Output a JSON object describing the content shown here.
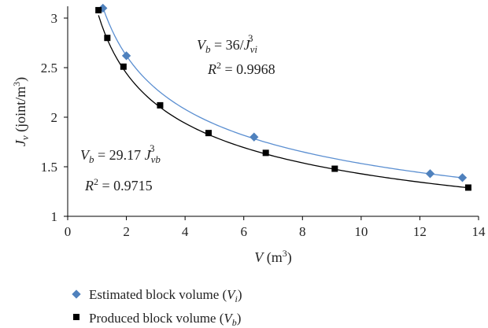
{
  "chart_data": {
    "type": "scatter",
    "xlabel": "V (m³)",
    "ylabel": "Jv (joint/m³)",
    "xlim": [
      0,
      14
    ],
    "ylim": [
      1,
      3.1
    ],
    "x_ticks": [
      "0",
      "2",
      "4",
      "6",
      "8",
      "10",
      "12",
      "14"
    ],
    "y_ticks": [
      "1",
      "1.5",
      "2",
      "2.5",
      "3"
    ],
    "grid": false,
    "legend_position": "bottom-left",
    "series": [
      {
        "name": "Estimated block volume (Vi)",
        "marker": "diamond",
        "color": "#4f81bd",
        "points": [
          {
            "x": 1.2,
            "y": 3.1
          },
          {
            "x": 2.0,
            "y": 2.62
          },
          {
            "x": 6.35,
            "y": 1.8
          },
          {
            "x": 12.35,
            "y": 1.43
          },
          {
            "x": 13.45,
            "y": 1.39
          }
        ],
        "trend": {
          "label_lhs": "Vb = 36/Jvi³",
          "r2": "R² = 0.9968",
          "formula": "y = (36/x)^(1/3)"
        }
      },
      {
        "name": "Produced block volume (Vb)",
        "marker": "square",
        "color": "#000000",
        "points": [
          {
            "x": 1.05,
            "y": 3.08
          },
          {
            "x": 1.35,
            "y": 2.8
          },
          {
            "x": 1.9,
            "y": 2.51
          },
          {
            "x": 3.15,
            "y": 2.12
          },
          {
            "x": 4.8,
            "y": 1.84
          },
          {
            "x": 6.75,
            "y": 1.64
          },
          {
            "x": 9.1,
            "y": 1.48
          },
          {
            "x": 13.65,
            "y": 1.29
          }
        ],
        "trend": {
          "label_lhs": "Vb = 29.17 Jvb³",
          "r2": "R² = 0.9715",
          "formula": "y = (29.17/x)^(1/3)"
        }
      }
    ]
  }
}
